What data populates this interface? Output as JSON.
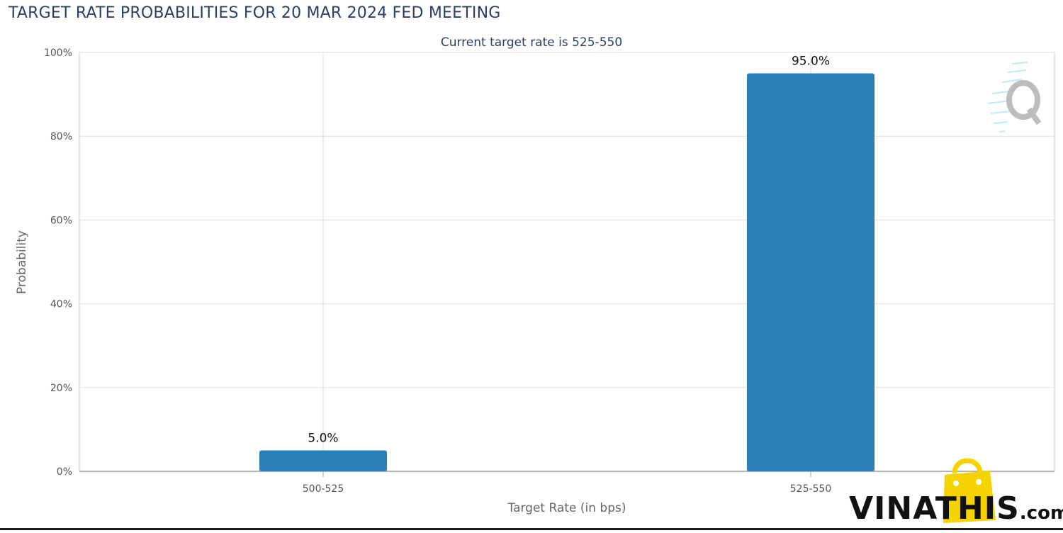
{
  "page": {
    "title": "TARGET RATE PROBABILITIES FOR 20 MAR 2024 FED MEETING",
    "watermark_text": "VINATHIS",
    "watermark_suffix": ".com"
  },
  "chart_data": {
    "type": "bar",
    "title": "",
    "subtitle": "Current target rate is 525-550",
    "xlabel": "Target Rate (in bps)",
    "ylabel": "Probability",
    "categories": [
      "500-525",
      "525-550"
    ],
    "values": [
      5.0,
      95.0
    ],
    "value_labels": [
      "5.0%",
      "95.0%"
    ],
    "ylim": [
      0,
      100
    ],
    "yticks": [
      0,
      20,
      40,
      60,
      80,
      100
    ],
    "ytick_labels": [
      "0%",
      "20%",
      "40%",
      "60%",
      "80%",
      "100%"
    ],
    "grid": true,
    "legend": "none",
    "bar_color": "#2a7fb8",
    "title_color": "#2b3f63",
    "gridline_color": "#dddddd"
  }
}
